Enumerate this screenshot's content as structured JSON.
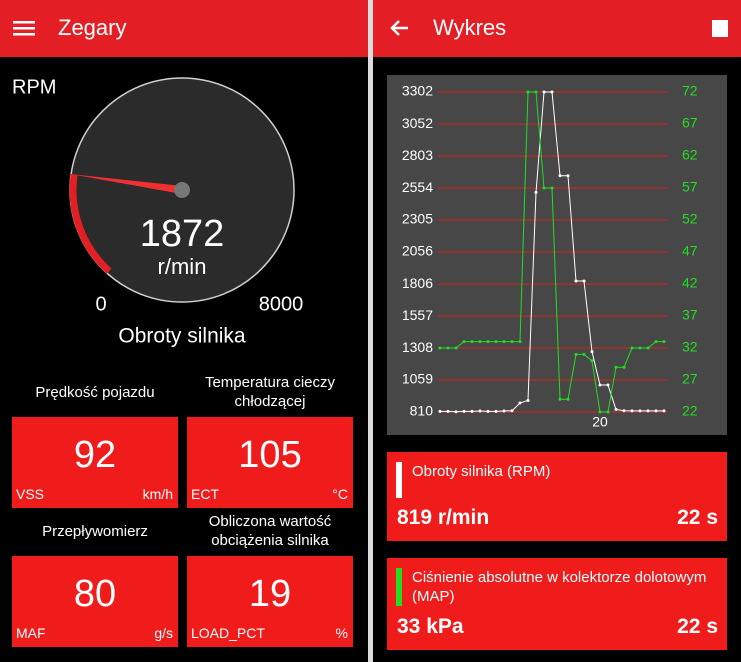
{
  "left": {
    "title": "Zegary",
    "gauge": {
      "label": "RPM",
      "value": 1872,
      "unit": "r/min",
      "min": 0,
      "max": 8000,
      "name": "Obroty silnika"
    },
    "tiles": [
      {
        "title": "Prędkość pojazdu",
        "value": 92,
        "code": "VSS",
        "unit": "km/h"
      },
      {
        "title": "Temperatura cieczy chłodzącej",
        "value": 105,
        "code": "ECT",
        "unit": "°C"
      },
      {
        "title": "Przepływomierz",
        "value": 80,
        "code": "MAF",
        "unit": "g/s"
      },
      {
        "title": "Obliczona wartość obciążenia silnika",
        "value": 19,
        "code": "LOAD_PCT",
        "unit": "%"
      }
    ]
  },
  "right": {
    "title": "Wykres",
    "cards": [
      {
        "title": "Obroty silnika (RPM)",
        "reading": "819 r/min",
        "time": "22 s"
      },
      {
        "title": "Ciśnienie absolutne w kolektorze dolotowym (MAP)",
        "reading": "33 kPa",
        "time": "22 s"
      }
    ]
  },
  "chart_data": {
    "type": "line",
    "x": [
      0,
      1,
      2,
      3,
      4,
      5,
      6,
      7,
      8,
      9,
      10,
      11,
      12,
      13,
      14,
      15,
      16,
      17,
      18,
      19,
      20,
      21,
      22,
      23,
      24,
      25,
      26,
      27,
      28
    ],
    "xlim": [
      0,
      28.5
    ],
    "xticks": [
      20
    ],
    "ylim": [
      810,
      3302
    ],
    "yticks": [
      810,
      1059,
      1308,
      1557,
      1806,
      2056,
      2305,
      2554,
      2803,
      3052,
      3302
    ],
    "y2lim": [
      22,
      72
    ],
    "y2ticks": [
      22,
      27,
      32,
      37,
      42,
      47,
      52,
      57,
      62,
      67,
      72
    ],
    "grid": true,
    "grid_color": "#d9261c",
    "series": [
      {
        "name": "Obroty silnika (RPM)",
        "color": "#ffffff",
        "values": [
          815,
          815,
          812,
          815,
          815,
          818,
          815,
          815,
          818,
          820,
          880,
          900,
          2520,
          3302,
          3302,
          2650,
          2650,
          1830,
          1830,
          1280,
          1020,
          1020,
          830,
          820,
          819,
          819,
          819,
          819,
          819
        ]
      },
      {
        "name": "MAP",
        "color": "#22dd22",
        "axis": "y2",
        "values": [
          32,
          32,
          32,
          33,
          33,
          33,
          33,
          33,
          33,
          33,
          33,
          72,
          72,
          57,
          57,
          24,
          24,
          31,
          31,
          30,
          22,
          22,
          29,
          29,
          32,
          32,
          32,
          33,
          33
        ]
      }
    ]
  }
}
